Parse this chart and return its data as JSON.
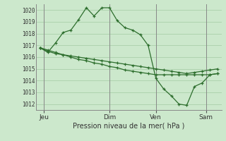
{
  "bg_color": "#cce8cc",
  "grid_color": "#aacfaa",
  "line_color": "#2d6e2d",
  "ylabel_text": "Pression niveau de la mer( hPa )",
  "x_ticks_labels": [
    "Jeu",
    "Dim",
    "Ven",
    "Sam"
  ],
  "x_ticks_pos": [
    0.5,
    9.0,
    15.0,
    21.5
  ],
  "ylim": [
    1011.5,
    1020.5
  ],
  "yticks": [
    1012,
    1013,
    1014,
    1015,
    1016,
    1017,
    1018,
    1019,
    1020
  ],
  "series": [
    [
      1016.8,
      1016.4,
      1017.2,
      1018.1,
      1018.3,
      1019.2,
      1020.2,
      1019.5,
      1020.2,
      1020.2,
      1019.1,
      1018.5,
      1018.3,
      1017.9,
      1017.0,
      1014.2,
      1013.3,
      1012.7,
      1012.0,
      1011.9,
      1013.5,
      1013.8,
      1014.5,
      1014.6
    ],
    [
      1016.8,
      1016.5,
      1016.3,
      1016.2,
      1016.1,
      1016.0,
      1015.9,
      1015.8,
      1015.7,
      1015.6,
      1015.5,
      1015.4,
      1015.3,
      1015.2,
      1015.1,
      1015.0,
      1014.9,
      1014.8,
      1014.7,
      1014.6,
      1014.7,
      1014.8,
      1014.9,
      1015.0
    ],
    [
      1016.8,
      1016.6,
      1016.4,
      1016.2,
      1016.0,
      1015.8,
      1015.7,
      1015.5,
      1015.4,
      1015.2,
      1015.1,
      1014.9,
      1014.8,
      1014.7,
      1014.6,
      1014.5,
      1014.5,
      1014.5,
      1014.5,
      1014.5,
      1014.5,
      1014.5,
      1014.5,
      1014.6
    ]
  ],
  "n_points": 24,
  "figsize": [
    3.2,
    2.0
  ],
  "dpi": 100
}
